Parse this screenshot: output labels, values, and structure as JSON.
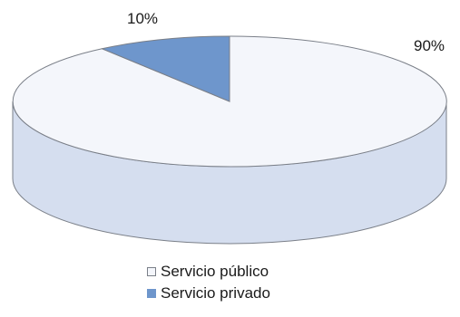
{
  "chart_data": {
    "type": "pie",
    "style": "3d",
    "slices": [
      {
        "label": "Servicio público",
        "value": 90,
        "data_label": "90%",
        "color": "#f4f6fb",
        "side_color": "#d5deef"
      },
      {
        "label": "Servicio privado",
        "value": 10,
        "data_label": "10%",
        "color": "#6e96cc",
        "side_color": "#4a72ad"
      }
    ],
    "legend_position": "bottom"
  }
}
